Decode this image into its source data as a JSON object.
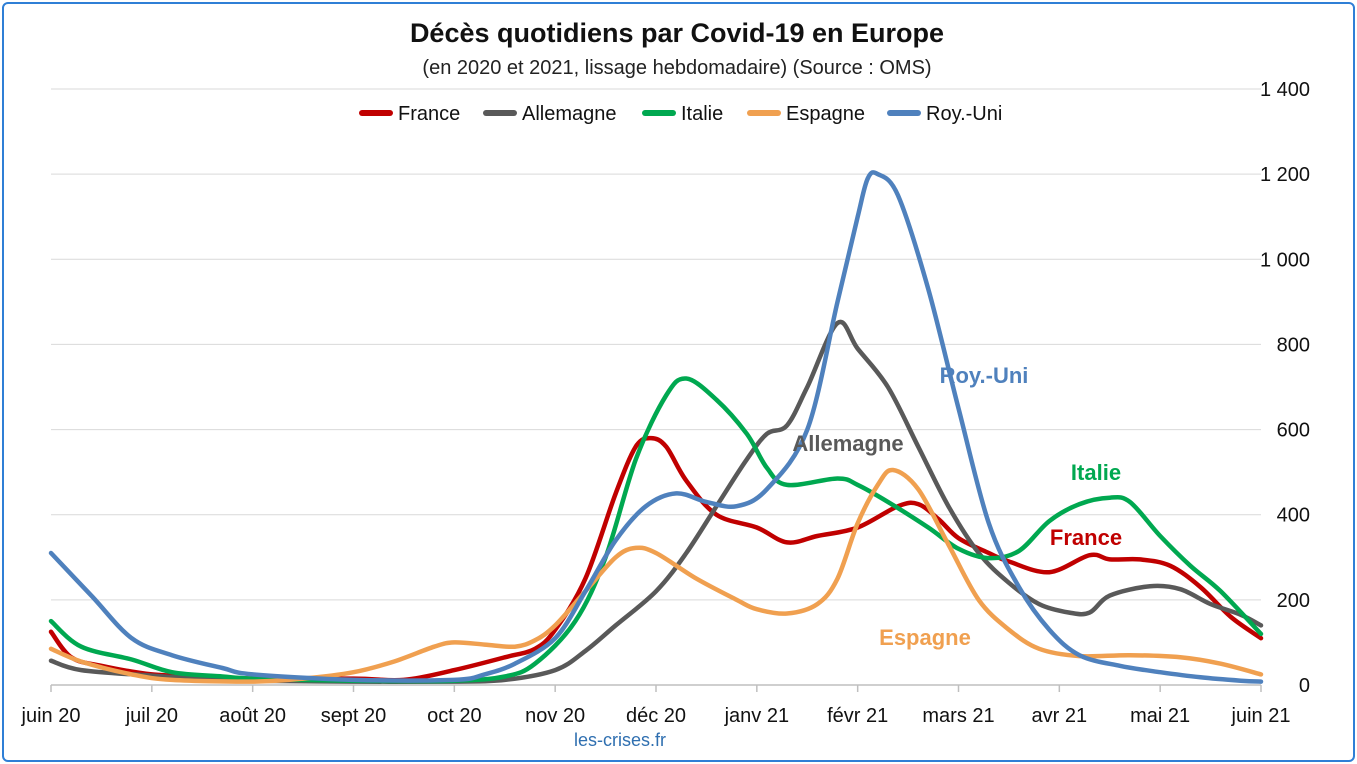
{
  "chart_data": {
    "type": "line",
    "title": "Décès quotidiens par Covid-19 en Europe",
    "subtitle": "(en 2020 et 2021, lissage hebdomadaire) (Source : OMS)",
    "source_note": "les-crises.fr",
    "x_tick_labels": [
      "juin 20",
      "juil 20",
      "août 20",
      "sept 20",
      "oct 20",
      "nov 20",
      "déc 20",
      "janv 21",
      "févr 21",
      "mars 21",
      "avr 21",
      "mai 21",
      "juin 21"
    ],
    "y_tick_labels": [
      "0",
      "200",
      "400",
      "600",
      "800",
      "1 000",
      "1 200",
      "1 400"
    ],
    "ylim": [
      0,
      1400
    ],
    "y_axis_position": "right",
    "grid": true,
    "legend_position": "top",
    "series": [
      {
        "name": "France",
        "color": "#c00000",
        "annotation": "France",
        "points": [
          [
            0,
            125
          ],
          [
            0.2,
            65
          ],
          [
            0.5,
            45
          ],
          [
            1,
            25
          ],
          [
            1.5,
            20
          ],
          [
            2,
            15
          ],
          [
            3,
            15
          ],
          [
            3.5,
            12
          ],
          [
            4,
            35
          ],
          [
            4.5,
            65
          ],
          [
            4.8,
            85
          ],
          [
            5,
            130
          ],
          [
            5.3,
            250
          ],
          [
            5.6,
            450
          ],
          [
            5.8,
            560
          ],
          [
            5.95,
            580
          ],
          [
            6.1,
            560
          ],
          [
            6.3,
            480
          ],
          [
            6.6,
            400
          ],
          [
            7,
            370
          ],
          [
            7.3,
            335
          ],
          [
            7.6,
            350
          ],
          [
            8,
            370
          ],
          [
            8.4,
            420
          ],
          [
            8.6,
            425
          ],
          [
            8.8,
            390
          ],
          [
            9,
            345
          ],
          [
            9.3,
            310
          ],
          [
            9.5,
            290
          ],
          [
            9.9,
            265
          ],
          [
            10.3,
            305
          ],
          [
            10.5,
            295
          ],
          [
            10.8,
            295
          ],
          [
            11.1,
            280
          ],
          [
            11.4,
            230
          ],
          [
            11.7,
            160
          ],
          [
            12,
            110
          ]
        ]
      },
      {
        "name": "Allemagne",
        "color": "#595959",
        "annotation": "Allemagne",
        "points": [
          [
            0,
            57
          ],
          [
            0.3,
            35
          ],
          [
            1,
            22
          ],
          [
            1.5,
            15
          ],
          [
            2,
            10
          ],
          [
            3,
            8
          ],
          [
            4,
            8
          ],
          [
            4.5,
            12
          ],
          [
            5,
            35
          ],
          [
            5.3,
            80
          ],
          [
            5.6,
            140
          ],
          [
            6,
            220
          ],
          [
            6.3,
            310
          ],
          [
            6.6,
            420
          ],
          [
            6.9,
            530
          ],
          [
            7.1,
            590
          ],
          [
            7.3,
            610
          ],
          [
            7.5,
            700
          ],
          [
            7.8,
            850
          ],
          [
            8,
            790
          ],
          [
            8.3,
            700
          ],
          [
            8.6,
            560
          ],
          [
            8.9,
            420
          ],
          [
            9.2,
            310
          ],
          [
            9.5,
            240
          ],
          [
            9.8,
            190
          ],
          [
            10.1,
            170
          ],
          [
            10.3,
            170
          ],
          [
            10.5,
            210
          ],
          [
            10.9,
            232
          ],
          [
            11.2,
            225
          ],
          [
            11.5,
            190
          ],
          [
            11.8,
            165
          ],
          [
            12,
            140
          ]
        ]
      },
      {
        "name": "Italie",
        "color": "#00a850",
        "annotation": "Italie",
        "points": [
          [
            0,
            150
          ],
          [
            0.3,
            90
          ],
          [
            0.8,
            60
          ],
          [
            1.2,
            30
          ],
          [
            1.7,
            20
          ],
          [
            2,
            15
          ],
          [
            3,
            10
          ],
          [
            4,
            10
          ],
          [
            4.5,
            20
          ],
          [
            4.8,
            50
          ],
          [
            5.2,
            150
          ],
          [
            5.5,
            300
          ],
          [
            5.8,
            530
          ],
          [
            6.1,
            680
          ],
          [
            6.3,
            720
          ],
          [
            6.6,
            670
          ],
          [
            6.9,
            590
          ],
          [
            7.1,
            510
          ],
          [
            7.3,
            470
          ],
          [
            7.8,
            485
          ],
          [
            8,
            470
          ],
          [
            8.3,
            430
          ],
          [
            8.7,
            370
          ],
          [
            9,
            320
          ],
          [
            9.3,
            298
          ],
          [
            9.6,
            315
          ],
          [
            9.9,
            385
          ],
          [
            10.2,
            425
          ],
          [
            10.5,
            440
          ],
          [
            10.7,
            430
          ],
          [
            11,
            350
          ],
          [
            11.3,
            280
          ],
          [
            11.6,
            220
          ],
          [
            12,
            120
          ]
        ]
      },
      {
        "name": "Espagne",
        "color": "#f0a050",
        "annotation": "Espagne",
        "points": [
          [
            0,
            85
          ],
          [
            0.3,
            55
          ],
          [
            0.8,
            25
          ],
          [
            1.2,
            12
          ],
          [
            2,
            8
          ],
          [
            2.5,
            15
          ],
          [
            3,
            30
          ],
          [
            3.4,
            55
          ],
          [
            3.8,
            90
          ],
          [
            4,
            100
          ],
          [
            4.3,
            95
          ],
          [
            4.6,
            90
          ],
          [
            4.8,
            105
          ],
          [
            5,
            140
          ],
          [
            5.3,
            220
          ],
          [
            5.6,
            300
          ],
          [
            5.8,
            322
          ],
          [
            6,
            310
          ],
          [
            6.4,
            250
          ],
          [
            6.8,
            200
          ],
          [
            7,
            178
          ],
          [
            7.3,
            168
          ],
          [
            7.6,
            190
          ],
          [
            7.8,
            250
          ],
          [
            8,
            380
          ],
          [
            8.2,
            470
          ],
          [
            8.35,
            505
          ],
          [
            8.6,
            460
          ],
          [
            8.9,
            330
          ],
          [
            9.2,
            200
          ],
          [
            9.5,
            130
          ],
          [
            9.8,
            85
          ],
          [
            10.2,
            68
          ],
          [
            10.7,
            70
          ],
          [
            11.2,
            65
          ],
          [
            11.6,
            50
          ],
          [
            12,
            25
          ]
        ]
      },
      {
        "name": "Roy.-Uni",
        "color": "#4f81bd",
        "annotation": "Roy.-Uni",
        "points": [
          [
            0,
            310
          ],
          [
            0.4,
            210
          ],
          [
            0.8,
            110
          ],
          [
            1.2,
            70
          ],
          [
            1.7,
            40
          ],
          [
            2,
            25
          ],
          [
            3,
            12
          ],
          [
            4,
            12
          ],
          [
            4.3,
            25
          ],
          [
            4.6,
            50
          ],
          [
            5,
            110
          ],
          [
            5.3,
            220
          ],
          [
            5.6,
            340
          ],
          [
            5.9,
            420
          ],
          [
            6.2,
            450
          ],
          [
            6.5,
            430
          ],
          [
            6.8,
            420
          ],
          [
            7.1,
            460
          ],
          [
            7.5,
            600
          ],
          [
            7.8,
            900
          ],
          [
            8,
            1100
          ],
          [
            8.1,
            1190
          ],
          [
            8.2,
            1200
          ],
          [
            8.4,
            1150
          ],
          [
            8.7,
            930
          ],
          [
            9,
            650
          ],
          [
            9.3,
            380
          ],
          [
            9.6,
            230
          ],
          [
            9.9,
            130
          ],
          [
            10.2,
            70
          ],
          [
            10.6,
            45
          ],
          [
            11,
            30
          ],
          [
            11.4,
            18
          ],
          [
            11.8,
            10
          ],
          [
            12,
            8
          ]
        ]
      }
    ]
  }
}
